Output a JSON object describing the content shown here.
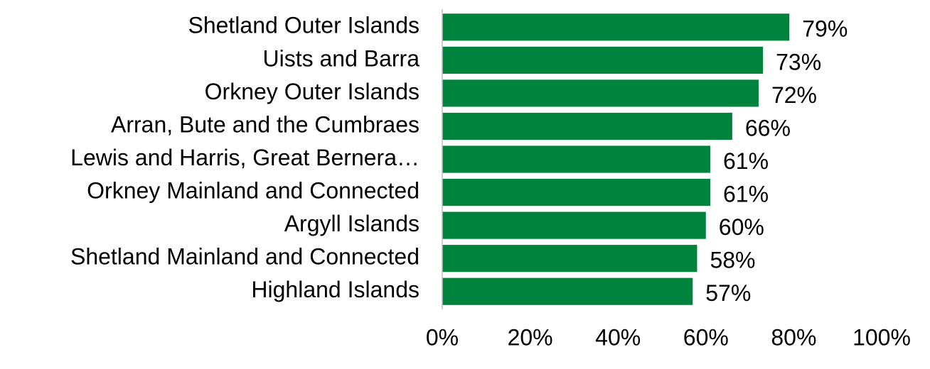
{
  "chart_data": {
    "type": "bar",
    "orientation": "horizontal",
    "categories": [
      "Shetland Outer Islands",
      "Uists and Barra",
      "Orkney Outer Islands",
      "Arran, Bute and the Cumbraes",
      "Lewis and Harris, Great Bernera…",
      "Orkney Mainland and Connected",
      "Argyll Islands",
      "Shetland Mainland and Connected",
      "Highland Islands"
    ],
    "values": [
      79,
      73,
      72,
      66,
      61,
      61,
      60,
      58,
      57
    ],
    "value_labels": [
      "79%",
      "73%",
      "72%",
      "66%",
      "61%",
      "61%",
      "60%",
      "58%",
      "57%"
    ],
    "color": "#00843d",
    "xlim": [
      0,
      100
    ],
    "xticks": [
      {
        "value": 0,
        "label": "0%"
      },
      {
        "value": 20,
        "label": "20%"
      },
      {
        "value": 40,
        "label": "40%"
      },
      {
        "value": 60,
        "label": "60%"
      },
      {
        "value": 80,
        "label": "80%"
      },
      {
        "value": 100,
        "label": "100%"
      }
    ],
    "grid": false
  }
}
